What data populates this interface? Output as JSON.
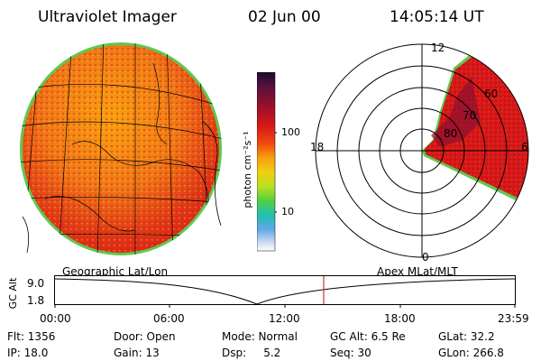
{
  "header": {
    "title": "Ultraviolet Imager",
    "date": "02 Jun 00",
    "time": "14:05:14 UT"
  },
  "colorbar": {
    "label": "photon cm⁻²s⁻¹",
    "ticks": [
      "100",
      "10"
    ],
    "scale": "log",
    "colors": [
      "#1a0a2e",
      "#5a1040",
      "#a0102a",
      "#d81818",
      "#f04a10",
      "#f8a010",
      "#f0d010",
      "#b8e020",
      "#50d040",
      "#20c0b0",
      "#60a8e8",
      "#c8d8f0",
      "#ffffff"
    ]
  },
  "geo_panel": {
    "caption": "Geographic Lat/Lon"
  },
  "polar_panel": {
    "caption": "Apex MLat/MLT",
    "mlt_labels": {
      "top": "12",
      "bottom": "0",
      "left": "18",
      "right": "6"
    },
    "mlat_labels": [
      "60",
      "70",
      "80"
    ]
  },
  "altitude_plot": {
    "ylabel": "GC Alt",
    "yticks": [
      "9.0",
      "1.8"
    ],
    "xticks": [
      "00:00",
      "06:00",
      "12:00",
      "18:00",
      "23:59"
    ],
    "marker_color": "#c83232"
  },
  "footer": {
    "row1": [
      "Flt: 1356",
      "Door: Open",
      "Mode: Normal",
      "GC Alt: 6.5 Re",
      "GLat: 32.2"
    ],
    "row2": [
      "IP: 18.0",
      "Gain: 13",
      "Dsp:     5.2",
      "Seq: 30",
      "GLon: 266.8"
    ]
  }
}
